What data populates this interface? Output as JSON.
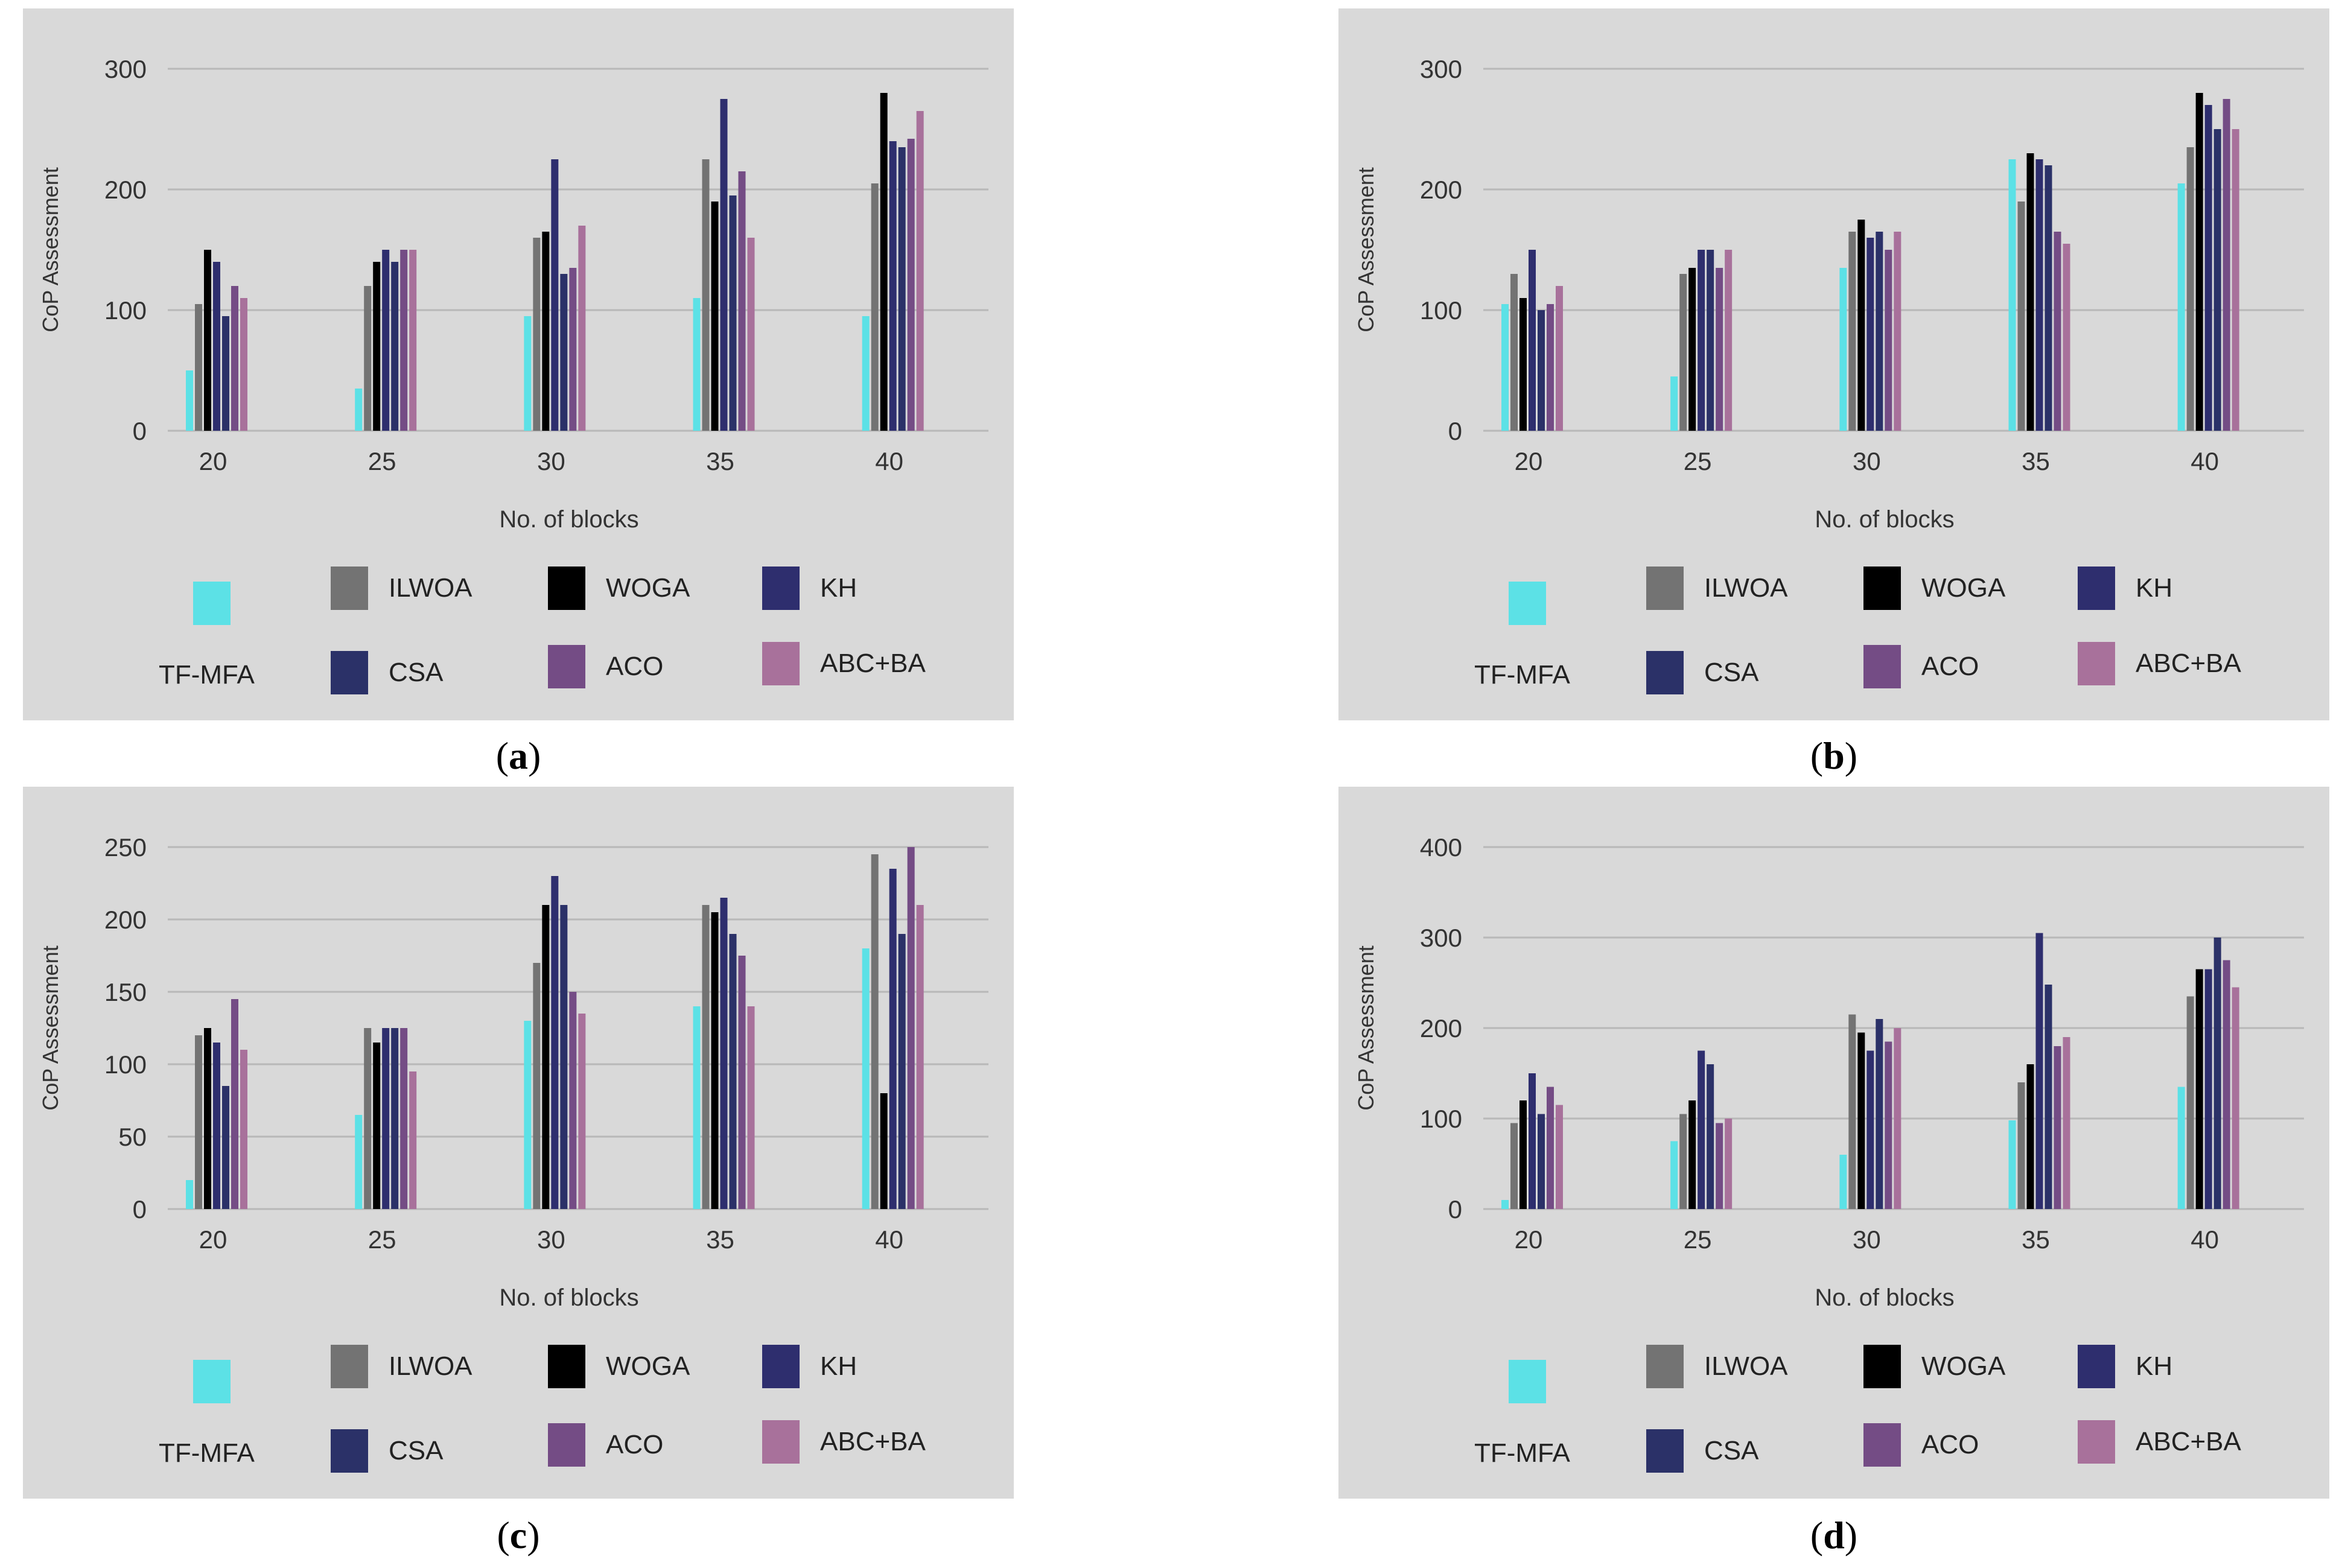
{
  "legend": {
    "series": [
      {
        "name": "TF-MFA",
        "color": "#5ce1e6"
      },
      {
        "name": "ILWOA",
        "color": "#737373"
      },
      {
        "name": "WOGA",
        "color": "#000000"
      },
      {
        "name": "KH",
        "color": "#2e2e6e"
      },
      {
        "name": "CSA",
        "color": "#2b3168"
      },
      {
        "name": "ACO",
        "color": "#744c85"
      },
      {
        "name": "ABC+BA",
        "color": "#a8719b"
      }
    ]
  },
  "chart_data": [
    {
      "id": "a",
      "caption_letter": "a",
      "type": "bar",
      "xlabel": "No. of blocks",
      "ylabel": "CoP Assessment",
      "categories": [
        "20",
        "25",
        "30",
        "35",
        "40"
      ],
      "ylim": [
        0,
        300
      ],
      "yticks": [
        0,
        100,
        200,
        300
      ],
      "bar_order": [
        "TF-MFA",
        "ILWOA",
        "WOGA",
        "KH",
        "CSA",
        "ACO",
        "ABC+BA"
      ],
      "series": [
        {
          "name": "TF-MFA",
          "values": [
            50,
            35,
            95,
            110,
            95
          ]
        },
        {
          "name": "ILWOA",
          "values": [
            105,
            120,
            160,
            225,
            205
          ]
        },
        {
          "name": "WOGA",
          "values": [
            150,
            140,
            165,
            190,
            280
          ]
        },
        {
          "name": "KH",
          "values": [
            140,
            150,
            225,
            275,
            240
          ]
        },
        {
          "name": "CSA",
          "values": [
            95,
            140,
            130,
            195,
            235
          ]
        },
        {
          "name": "ACO",
          "values": [
            120,
            150,
            135,
            215,
            242
          ]
        },
        {
          "name": "ABC+BA",
          "values": [
            110,
            150,
            170,
            160,
            265
          ]
        }
      ]
    },
    {
      "id": "b",
      "caption_letter": "b",
      "type": "bar",
      "xlabel": "No. of blocks",
      "ylabel": "CoP Assessment",
      "categories": [
        "20",
        "25",
        "30",
        "35",
        "40"
      ],
      "ylim": [
        0,
        300
      ],
      "yticks": [
        0,
        100,
        200,
        300
      ],
      "bar_order": [
        "TF-MFA",
        "ILWOA",
        "WOGA",
        "KH",
        "CSA",
        "ACO",
        "ABC+BA"
      ],
      "series": [
        {
          "name": "TF-MFA",
          "values": [
            105,
            45,
            135,
            225,
            205
          ]
        },
        {
          "name": "ILWOA",
          "values": [
            130,
            130,
            165,
            190,
            235
          ]
        },
        {
          "name": "WOGA",
          "values": [
            110,
            135,
            175,
            230,
            280
          ]
        },
        {
          "name": "KH",
          "values": [
            150,
            150,
            160,
            225,
            270
          ]
        },
        {
          "name": "CSA",
          "values": [
            100,
            150,
            165,
            220,
            250
          ]
        },
        {
          "name": "ACO",
          "values": [
            105,
            135,
            150,
            165,
            275
          ]
        },
        {
          "name": "ABC+BA",
          "values": [
            120,
            150,
            165,
            155,
            250
          ]
        }
      ]
    },
    {
      "id": "c",
      "caption_letter": "c",
      "type": "bar",
      "xlabel": "No. of blocks",
      "ylabel": "CoP Assessment",
      "categories": [
        "20",
        "25",
        "30",
        "35",
        "40"
      ],
      "ylim": [
        0,
        250
      ],
      "yticks": [
        0,
        50,
        100,
        150,
        200,
        250
      ],
      "bar_order": [
        "TF-MFA",
        "ILWOA",
        "WOGA",
        "KH",
        "CSA",
        "ACO",
        "ABC+BA"
      ],
      "series": [
        {
          "name": "TF-MFA",
          "values": [
            20,
            65,
            130,
            140,
            180
          ]
        },
        {
          "name": "ILWOA",
          "values": [
            120,
            125,
            170,
            210,
            245
          ]
        },
        {
          "name": "WOGA",
          "values": [
            125,
            115,
            210,
            205,
            80
          ]
        },
        {
          "name": "KH",
          "values": [
            115,
            125,
            230,
            215,
            235
          ]
        },
        {
          "name": "CSA",
          "values": [
            85,
            125,
            210,
            190,
            190
          ]
        },
        {
          "name": "ACO",
          "values": [
            145,
            125,
            150,
            175,
            250
          ]
        },
        {
          "name": "ABC+BA",
          "values": [
            110,
            95,
            135,
            140,
            210
          ]
        }
      ]
    },
    {
      "id": "d",
      "caption_letter": "d",
      "type": "bar",
      "xlabel": "No. of blocks",
      "ylabel": "CoP Assessment",
      "categories": [
        "20",
        "25",
        "30",
        "35",
        "40"
      ],
      "ylim": [
        0,
        400
      ],
      "yticks": [
        0,
        100,
        200,
        300,
        400
      ],
      "bar_order": [
        "TF-MFA",
        "ILWOA",
        "WOGA",
        "KH",
        "CSA",
        "ACO",
        "ABC+BA"
      ],
      "series": [
        {
          "name": "TF-MFA",
          "values": [
            10,
            75,
            60,
            98,
            135
          ]
        },
        {
          "name": "ILWOA",
          "values": [
            95,
            105,
            215,
            140,
            235
          ]
        },
        {
          "name": "WOGA",
          "values": [
            120,
            120,
            195,
            160,
            265
          ]
        },
        {
          "name": "KH",
          "values": [
            150,
            175,
            175,
            305,
            265
          ]
        },
        {
          "name": "CSA",
          "values": [
            105,
            160,
            210,
            248,
            300
          ]
        },
        {
          "name": "ACO",
          "values": [
            135,
            95,
            185,
            180,
            275
          ]
        },
        {
          "name": "ABC+BA",
          "values": [
            115,
            100,
            200,
            190,
            245
          ]
        }
      ]
    }
  ]
}
